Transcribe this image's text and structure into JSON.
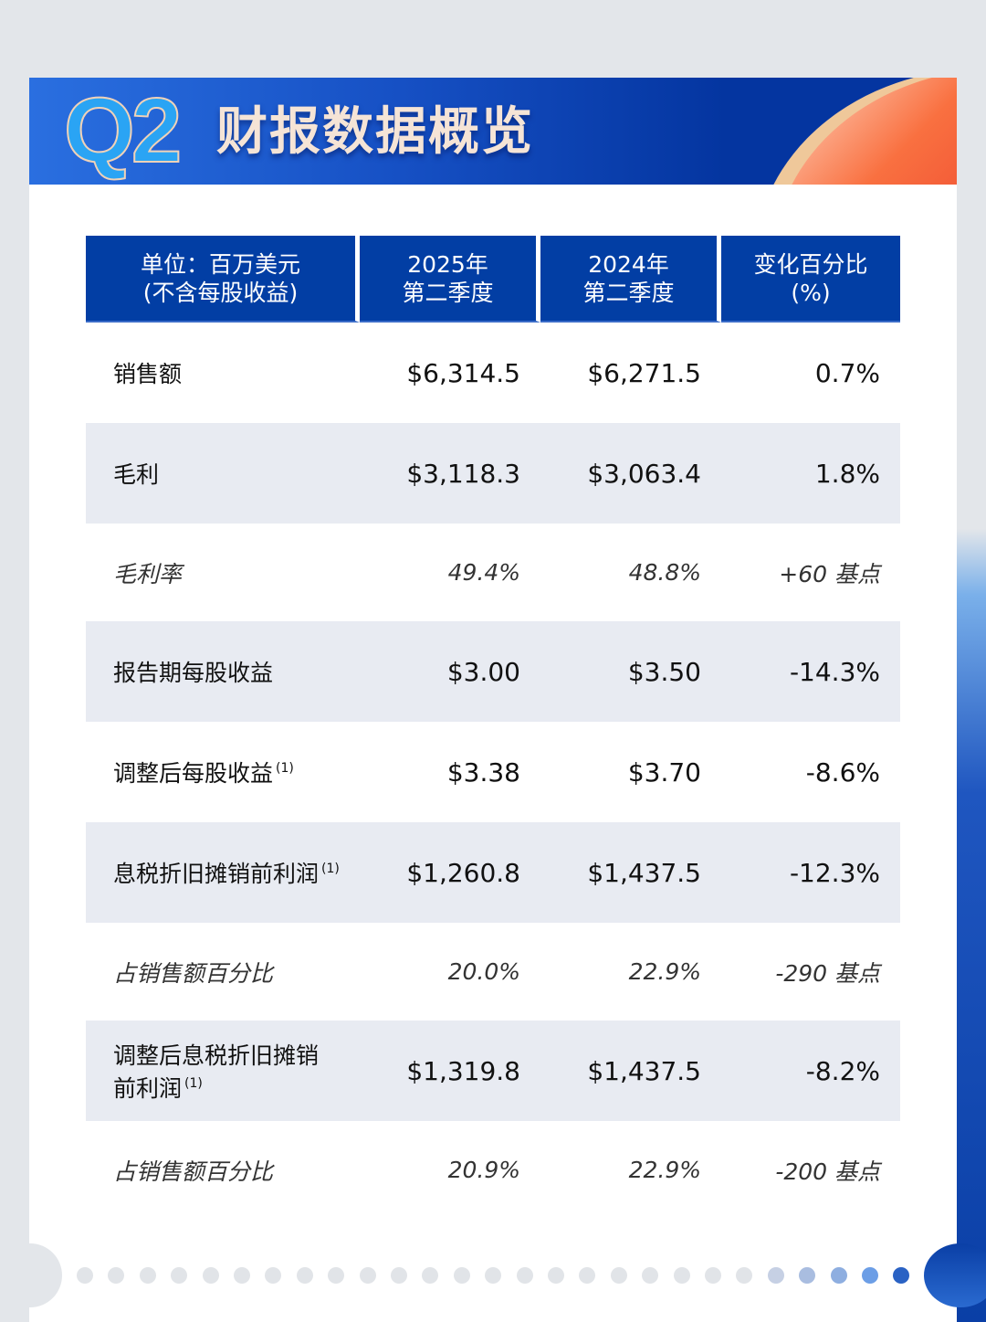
{
  "header": {
    "q_label": "Q2",
    "title": "财报数据概览"
  },
  "table": {
    "columns": [
      {
        "line1": "单位：百万美元",
        "line2": "(不含每股收益)"
      },
      {
        "line1": "2025年",
        "line2": "第二季度"
      },
      {
        "line1": "2024年",
        "line2": "第二季度"
      },
      {
        "line1": "变化百分比",
        "line2": "(%)"
      }
    ],
    "rows": [
      {
        "label": "销售额",
        "note": "",
        "q2_2025": "$6,314.5",
        "q2_2024": "$6,271.5",
        "change": "0.7%"
      },
      {
        "label": "毛利",
        "note": "",
        "q2_2025": "$3,118.3",
        "q2_2024": "$3,063.4",
        "change": "1.8%"
      },
      {
        "label": "毛利率",
        "note": "",
        "q2_2025": "49.4%",
        "q2_2024": "48.8%",
        "change": "+60 基点"
      },
      {
        "label": "报告期每股收益",
        "note": "",
        "q2_2025": "$3.00",
        "q2_2024": "$3.50",
        "change": "-14.3%"
      },
      {
        "label": "调整后每股收益",
        "note": "(1)",
        "q2_2025": "$3.38",
        "q2_2024": "$3.70",
        "change": "-8.6%"
      },
      {
        "label": "息税折旧摊销前利润",
        "note": "(1)",
        "q2_2025": "$1,260.8",
        "q2_2024": "$1,437.5",
        "change": "-12.3%"
      },
      {
        "label": "占销售额百分比",
        "note": "",
        "q2_2025": "20.0%",
        "q2_2024": "22.9%",
        "change": "-290 基点"
      },
      {
        "label": "调整后息税折旧摊销前利润",
        "note": "(1)",
        "q2_2025": "$1,319.8",
        "q2_2024": "$1,437.5",
        "change": "-8.2%"
      },
      {
        "label": "占销售额百分比",
        "note": "",
        "q2_2025": "20.9%",
        "q2_2024": "22.9%",
        "change": "-200 基点"
      }
    ]
  },
  "pagination": {
    "total_dots": 27,
    "colors": {
      "inactive": "#e1e4e8",
      "active": [
        "#c6d0e4",
        "#a9bde0",
        "#8eaee0",
        "#6c9ee6",
        "#2a62c4"
      ]
    }
  },
  "colors": {
    "header_blue": "#023ea4",
    "stripe": "#e8ebf2",
    "accent_red": "#e83427"
  }
}
